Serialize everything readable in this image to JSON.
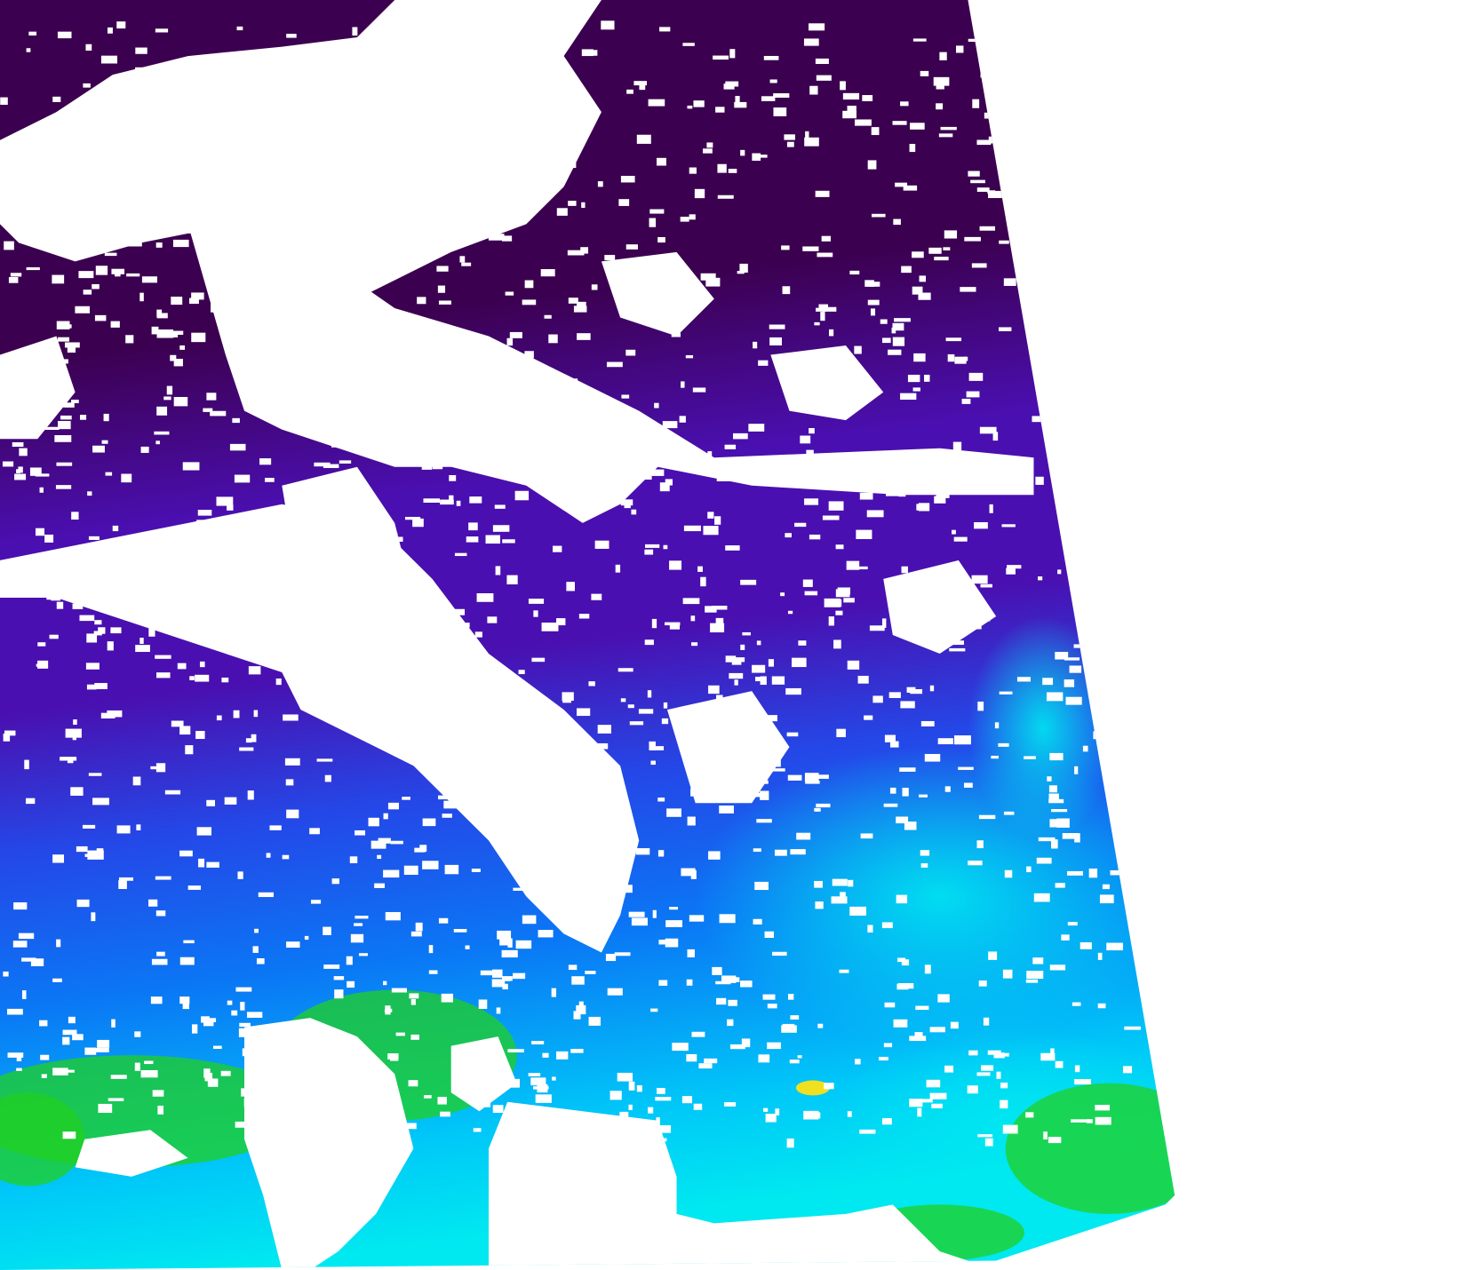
{
  "map": {
    "background": "#ffffff",
    "no_data_color": "#ffffff",
    "palette": {
      "very_low": "#3c0050",
      "low": "#4a0fb0",
      "mid_low": "#2448e8",
      "mid": "#0a78f5",
      "mid_high": "#00c8f8",
      "high": "#00e8f0",
      "coastal": "#20d020",
      "very_high": "#f0e020",
      "extreme": "#f02010"
    }
  }
}
